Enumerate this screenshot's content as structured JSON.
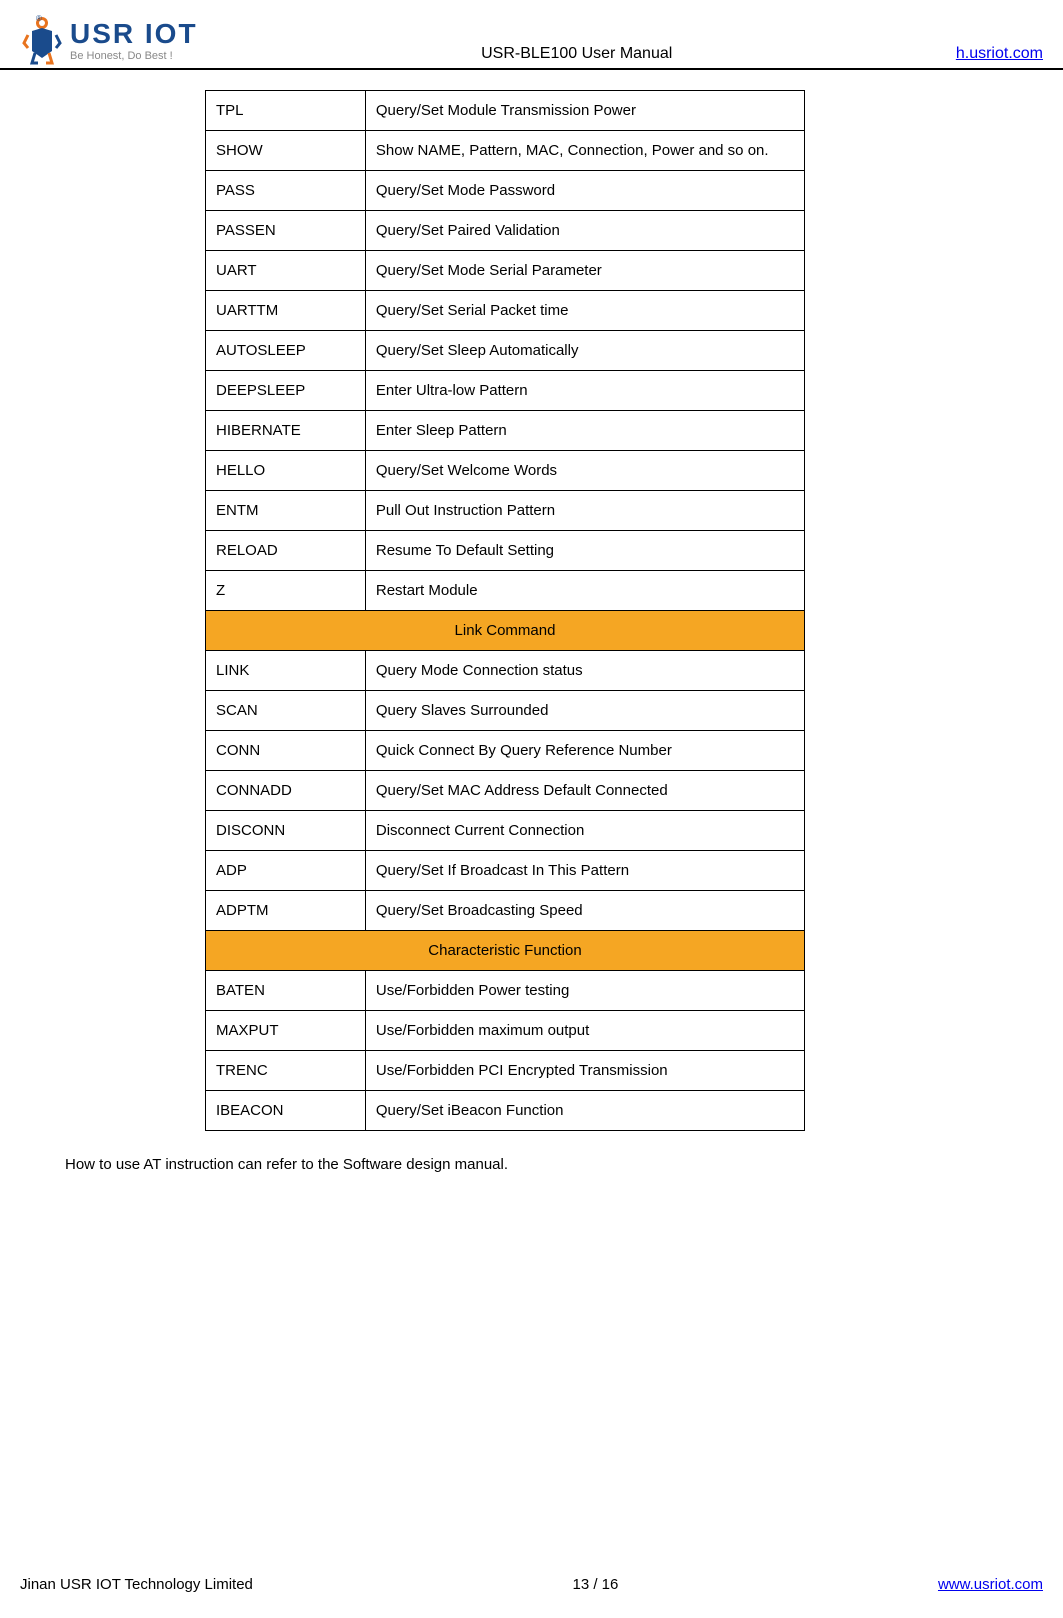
{
  "header": {
    "logo_main": "USR IOT",
    "logo_tagline": "Be Honest, Do Best !",
    "doc_title": "USR-BLE100 User Manual",
    "header_link": "h.usriot.com"
  },
  "table": {
    "section1_rows": [
      {
        "cmd": "TPL",
        "desc": "Query/Set Module Transmission Power"
      },
      {
        "cmd": "SHOW",
        "desc": "Show NAME, Pattern, MAC, Connection, Power and so on."
      },
      {
        "cmd": "PASS",
        "desc": "Query/Set Mode Password"
      },
      {
        "cmd": "PASSEN",
        "desc": "Query/Set Paired Validation"
      },
      {
        "cmd": "UART",
        "desc": "Query/Set Mode Serial Parameter"
      },
      {
        "cmd": "UARTTM",
        "desc": "Query/Set Serial Packet time"
      },
      {
        "cmd": "AUTOSLEEP",
        "desc": "Query/Set Sleep Automatically"
      },
      {
        "cmd": "DEEPSLEEP",
        "desc": "Enter Ultra-low Pattern"
      },
      {
        "cmd": "HIBERNATE",
        "desc": "Enter Sleep Pattern"
      },
      {
        "cmd": "HELLO",
        "desc": "Query/Set Welcome Words"
      },
      {
        "cmd": "ENTM",
        "desc": "Pull Out Instruction Pattern"
      },
      {
        "cmd": "RELOAD",
        "desc": "Resume To Default Setting"
      },
      {
        "cmd": "Z",
        "desc": "Restart Module"
      }
    ],
    "section2_header": "Link Command",
    "section2_rows": [
      {
        "cmd": "LINK",
        "desc": "Query Mode Connection status"
      },
      {
        "cmd": "SCAN",
        "desc": "Query Slaves Surrounded"
      },
      {
        "cmd": "CONN",
        "desc": "Quick Connect By Query Reference Number"
      },
      {
        "cmd": "CONNADD",
        "desc": "Query/Set MAC Address Default Connected"
      },
      {
        "cmd": "DISCONN",
        "desc": "Disconnect Current Connection"
      },
      {
        "cmd": "ADP",
        "desc": "Query/Set If Broadcast In This Pattern"
      },
      {
        "cmd": "ADPTM",
        "desc": "Query/Set Broadcasting Speed"
      }
    ],
    "section3_header": "Characteristic Function",
    "section3_rows": [
      {
        "cmd": "BATEN",
        "desc": "Use/Forbidden Power testing"
      },
      {
        "cmd": "MAXPUT",
        "desc": "Use/Forbidden maximum output"
      },
      {
        "cmd": "TRENC",
        "desc": "Use/Forbidden PCI Encrypted Transmission"
      },
      {
        "cmd": "IBEACON",
        "desc": "Query/Set iBeacon Function"
      }
    ]
  },
  "body_text": "How to use AT instruction can refer to the Software design manual.",
  "footer": {
    "company": "Jinan USR IOT Technology Limited",
    "page": "13 / 16",
    "url": "www.usriot.com"
  },
  "colors": {
    "section_bg": "#f5a623",
    "link_color": "#0000ee",
    "logo_blue": "#1a4b8c",
    "logo_orange": "#e8731e"
  }
}
